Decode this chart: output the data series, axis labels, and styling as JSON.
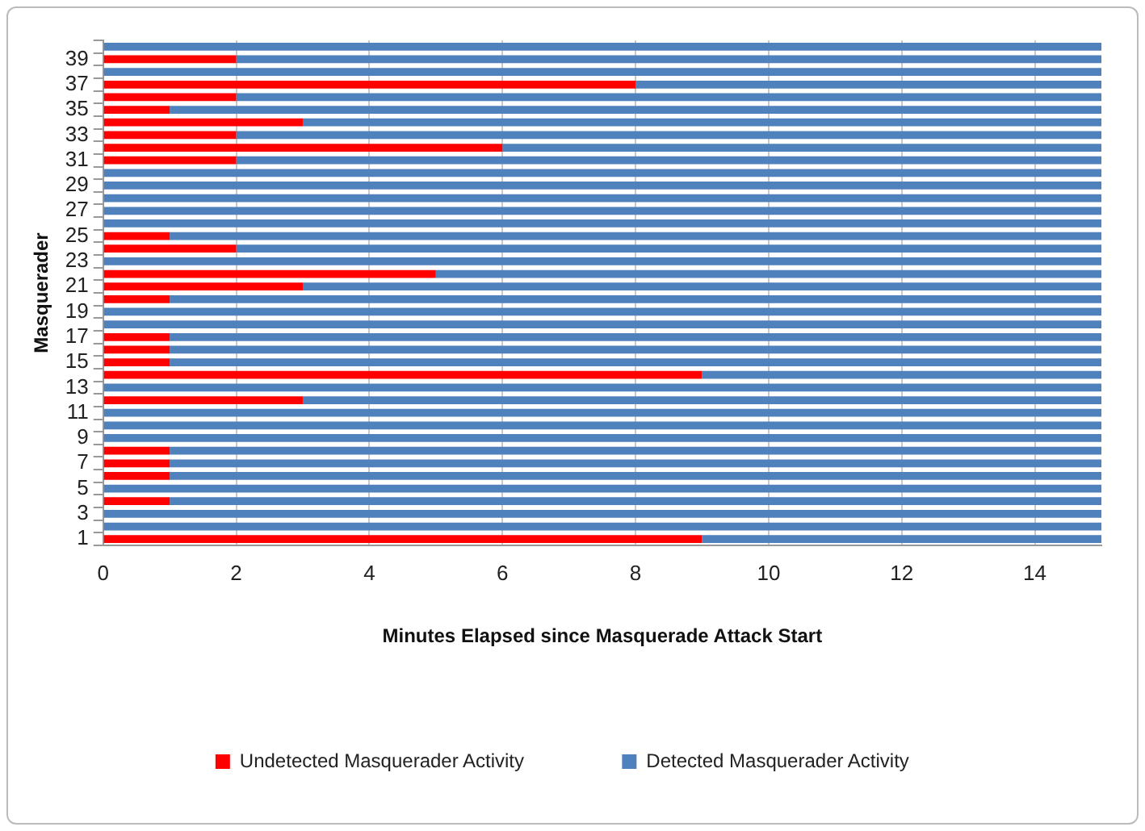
{
  "chart_data": {
    "type": "bar",
    "orientation": "horizontal",
    "stacked": true,
    "xlabel": "Minutes Elapsed since Masquerade Attack Start",
    "ylabel": "Masquerader",
    "categories": [
      null,
      "39",
      null,
      "37",
      null,
      "35",
      null,
      "33",
      null,
      "31",
      null,
      "29",
      null,
      "27",
      null,
      "25",
      null,
      "23",
      null,
      "21",
      null,
      "19",
      null,
      "17",
      null,
      "15",
      null,
      "13",
      null,
      "11",
      null,
      "9",
      null,
      "7",
      null,
      "5",
      null,
      "3",
      null,
      "1"
    ],
    "series": [
      {
        "name": "Undetected Masquerader Activity",
        "color": "#ff0000",
        "values": [
          0,
          2,
          0,
          8,
          2,
          1,
          3,
          2,
          6,
          2,
          0,
          0,
          0,
          0,
          0,
          1,
          2,
          0,
          5,
          3,
          1,
          0,
          0,
          1,
          1,
          1,
          9,
          0,
          3,
          0,
          0,
          0,
          1,
          1,
          1,
          0,
          1,
          0,
          0,
          9
        ]
      },
      {
        "name": "Detected Masquerader Activity",
        "color": "#4f81bd",
        "values": [
          15,
          13,
          15,
          7,
          13,
          14,
          12,
          13,
          9,
          13,
          15,
          15,
          15,
          15,
          15,
          14,
          13,
          15,
          10,
          12,
          14,
          15,
          15,
          14,
          14,
          14,
          6,
          15,
          12,
          15,
          15,
          15,
          14,
          14,
          14,
          15,
          14,
          15,
          15,
          6
        ]
      }
    ],
    "xlim": [
      0,
      15
    ],
    "xticks": [
      0,
      2,
      4,
      6,
      8,
      10,
      12,
      14
    ],
    "grid": "x",
    "legend": "bottom"
  }
}
